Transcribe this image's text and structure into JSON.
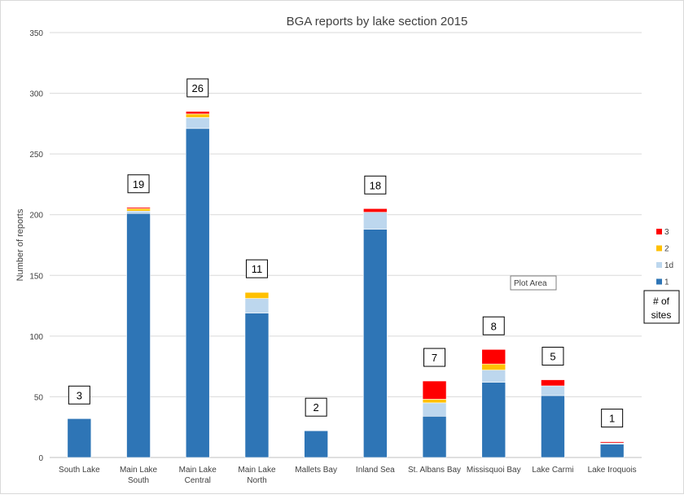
{
  "chart_data": {
    "type": "bar",
    "stacked": true,
    "title": "BGA reports by lake section 2015",
    "xlabel": "",
    "ylabel": "Number of reports",
    "ylim": [
      0,
      350
    ],
    "yticks": [
      0,
      50,
      100,
      150,
      200,
      250,
      300,
      350
    ],
    "grid": true,
    "legend_position": "right",
    "categories": [
      [
        "South Lake"
      ],
      [
        "Main Lake",
        "South"
      ],
      [
        "Main Lake",
        "Central"
      ],
      [
        "Main Lake",
        "North"
      ],
      [
        "Mallets Bay"
      ],
      [
        "Inland Sea"
      ],
      [
        "St. Albans Bay"
      ],
      [
        "Missisquoi Bay"
      ],
      [
        "Lake Carmi"
      ],
      [
        "Lake Iroquois"
      ]
    ],
    "series": [
      {
        "name": "1",
        "color": "#2E75B6",
        "values": [
          32,
          201,
          271,
          119,
          22,
          188,
          34,
          62,
          51,
          11
        ]
      },
      {
        "name": "1d",
        "color": "#BDD7EE",
        "values": [
          0,
          2,
          9,
          12,
          0,
          14,
          11,
          10,
          8,
          1
        ]
      },
      {
        "name": "2",
        "color": "#FFC000",
        "values": [
          0,
          2,
          3,
          5,
          0,
          0,
          3,
          5,
          0,
          0
        ]
      },
      {
        "name": "3",
        "color": "#FF0000",
        "values": [
          0,
          1,
          2,
          0,
          0,
          3,
          15,
          12,
          5,
          1
        ]
      }
    ],
    "site_counts": [
      3,
      19,
      26,
      11,
      2,
      18,
      7,
      8,
      5,
      1
    ],
    "legend_title": [
      "# of",
      "sites"
    ],
    "tooltip": "Plot Area"
  }
}
